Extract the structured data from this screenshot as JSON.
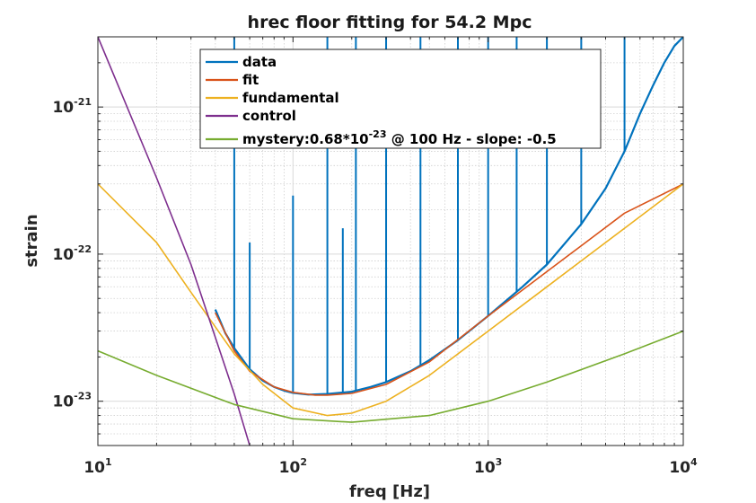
{
  "chart_data": {
    "type": "line",
    "title": "hrec floor fitting for 54.2 Mpc",
    "xlabel": "freq [Hz]",
    "ylabel": "strain",
    "xscale": "log",
    "yscale": "log",
    "xlim": [
      10,
      10000
    ],
    "ylim": [
      5e-24,
      3e-21
    ],
    "grid": true,
    "minor_grid": true,
    "legend_position": "top-center",
    "x_ticks": [
      {
        "base": "10",
        "exp": "1"
      },
      {
        "base": "10",
        "exp": "2"
      },
      {
        "base": "10",
        "exp": "3"
      },
      {
        "base": "10",
        "exp": "4"
      }
    ],
    "y_ticks": [
      {
        "base": "10",
        "exp": "-23",
        "value": 1e-23
      },
      {
        "base": "10",
        "exp": "-22",
        "value": 1e-22
      },
      {
        "base": "10",
        "exp": "-21",
        "value": 1e-21
      }
    ],
    "series": [
      {
        "name": "data",
        "color": "#0072BD",
        "x": [
          40,
          45,
          50,
          60,
          70,
          80,
          90,
          100,
          120,
          150,
          200,
          250,
          300,
          400,
          500,
          700,
          1000,
          1500,
          2000,
          3000,
          4000,
          5000,
          6000,
          7000,
          8000,
          9000,
          10000
        ],
        "y": [
          4.2e-23,
          2.9e-23,
          2.3e-23,
          1.65e-23,
          1.38e-23,
          1.25e-23,
          1.18e-23,
          1.14e-23,
          1.11e-23,
          1.12e-23,
          1.16e-23,
          1.25e-23,
          1.35e-23,
          1.6e-23,
          1.9e-23,
          2.6e-23,
          3.8e-23,
          6e-23,
          8.5e-23,
          1.6e-22,
          2.8e-22,
          5e-22,
          9e-22,
          1.4e-21,
          2e-21,
          2.6e-21,
          3e-21
        ],
        "spikes": [
          {
            "x": 50,
            "y": 3e-21
          },
          {
            "x": 60,
            "y": 1.2e-22
          },
          {
            "x": 100,
            "y": 2.5e-22
          },
          {
            "x": 150,
            "y": 3e-21
          },
          {
            "x": 180,
            "y": 1.5e-22
          },
          {
            "x": 210,
            "y": 3e-21
          },
          {
            "x": 300,
            "y": 3e-21
          },
          {
            "x": 450,
            "y": 3e-21
          },
          {
            "x": 700,
            "y": 3e-21
          },
          {
            "x": 1000,
            "y": 3e-21
          },
          {
            "x": 1400,
            "y": 3e-21
          },
          {
            "x": 2000,
            "y": 3e-21
          },
          {
            "x": 3000,
            "y": 3e-21
          },
          {
            "x": 5000,
            "y": 3e-21
          }
        ]
      },
      {
        "name": "fit",
        "color": "#D95319",
        "x": [
          40,
          50,
          60,
          80,
          100,
          130,
          150,
          200,
          300,
          500,
          1000,
          2000,
          3000,
          5000,
          10000
        ],
        "y": [
          4e-23,
          2.2e-23,
          1.6e-23,
          1.25e-23,
          1.15e-23,
          1.1e-23,
          1.1e-23,
          1.13e-23,
          1.3e-23,
          1.85e-23,
          3.8e-23,
          7.6e-23,
          1.14e-22,
          1.9e-22,
          3e-22
        ]
      },
      {
        "name": "fundamental",
        "color": "#EDB120",
        "x": [
          10,
          20,
          30,
          50,
          70,
          100,
          150,
          200,
          300,
          500,
          1000,
          2000,
          5000,
          10000
        ],
        "y": [
          3e-22,
          1.2e-22,
          5.5e-23,
          2.1e-23,
          1.3e-23,
          9e-24,
          8e-24,
          8.3e-24,
          1e-23,
          1.5e-23,
          3e-23,
          6e-23,
          1.5e-22,
          3e-22
        ]
      },
      {
        "name": "control",
        "color": "#7E2F8E",
        "x": [
          10,
          20,
          30,
          50,
          60
        ],
        "y": [
          3e-21,
          3.3e-22,
          8.5e-23,
          1.12e-23,
          5e-24
        ]
      },
      {
        "name": "mystery:0.68*10-23 @ 100 Hz - slope: -0.5",
        "color": "#77AC30",
        "x": [
          10,
          20,
          50,
          100,
          200,
          500,
          1000,
          2000,
          5000,
          10000
        ],
        "y": [
          2.2e-23,
          1.5e-23,
          9.5e-24,
          7.6e-24,
          7.2e-24,
          8e-24,
          1e-23,
          1.35e-23,
          2.1e-23,
          3e-23
        ]
      }
    ],
    "legend": [
      {
        "label": "data",
        "color": "#0072BD"
      },
      {
        "label": "fit",
        "color": "#D95319"
      },
      {
        "label": "fundamental",
        "color": "#EDB120"
      },
      {
        "label": "control",
        "color": "#7E2F8E"
      },
      {
        "label_pre": "mystery:0.68*10",
        "label_sup": "-23",
        "label_post": " @ 100 Hz - slope: -0.5",
        "color": "#77AC30"
      }
    ]
  }
}
